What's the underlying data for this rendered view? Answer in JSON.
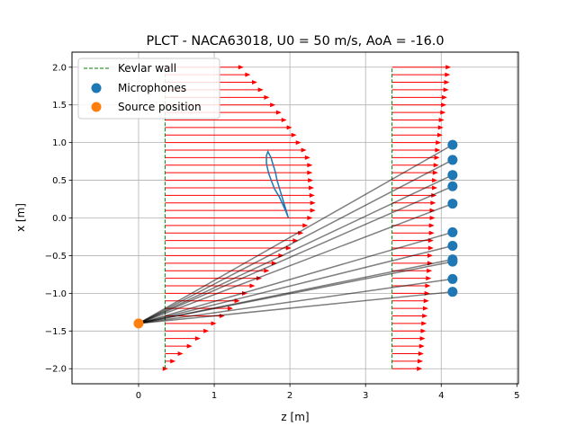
{
  "chart_data": {
    "type": "scatter",
    "title": "PLCT - NACA63018, U0 = 50 m/s, AoA = -16.0",
    "xlabel": "z [m]",
    "ylabel": "x [m]",
    "xlim": [
      -0.88,
      5.02
    ],
    "ylim": [
      -2.2,
      2.2
    ],
    "xticks": [
      "0",
      "1",
      "2",
      "3",
      "4",
      "5"
    ],
    "yticks": [
      "−2.0",
      "−1.5",
      "−1.0",
      "−0.5",
      "0.0",
      "0.5",
      "1.0",
      "1.5",
      "2.0"
    ],
    "grid": true,
    "legend_position": "top-left",
    "legend": [
      {
        "label": "Kevlar wall",
        "marker": "dashed-line",
        "color": "#008000"
      },
      {
        "label": "Microphones",
        "marker": "circle",
        "color": "#1f77b4"
      },
      {
        "label": "Source position",
        "marker": "circle",
        "color": "#ff7f0e"
      }
    ],
    "kevlar_wall": {
      "z": [
        0.35,
        3.35
      ],
      "x_range": [
        -2.0,
        2.0
      ],
      "color": "#008000"
    },
    "microphones": {
      "color": "#1f77b4",
      "points": [
        {
          "z": 4.15,
          "x": 0.97
        },
        {
          "z": 4.15,
          "x": 0.77
        },
        {
          "z": 4.15,
          "x": 0.57
        },
        {
          "z": 4.15,
          "x": 0.42
        },
        {
          "z": 4.15,
          "x": 0.19
        },
        {
          "z": 4.15,
          "x": -0.19
        },
        {
          "z": 4.15,
          "x": -0.37
        },
        {
          "z": 4.15,
          "x": -0.55
        },
        {
          "z": 4.15,
          "x": -0.58
        },
        {
          "z": 4.15,
          "x": -0.81
        },
        {
          "z": 4.15,
          "x": -0.98
        }
      ]
    },
    "source_position": {
      "z": 0.0,
      "x": -1.4,
      "color": "#ff7f0e"
    },
    "acoustic_rays": {
      "color": "#555555",
      "from": "source_position",
      "to": "microphones"
    },
    "velocity_profiles": [
      {
        "z0": 0.35,
        "x_values": [
          -2.0,
          -1.9,
          -1.8,
          -1.7,
          -1.6,
          -1.5,
          -1.4,
          -1.3,
          -1.2,
          -1.1,
          -1.0,
          -0.9,
          -0.8,
          -0.7,
          -0.6,
          -0.5,
          -0.4,
          -0.3,
          -0.2,
          -0.1,
          0.0,
          0.1,
          0.2,
          0.3,
          0.4,
          0.5,
          0.6,
          0.7,
          0.8,
          0.9,
          1.0,
          1.1,
          1.2,
          1.3,
          1.4,
          1.5,
          1.6,
          1.7,
          1.8,
          1.9,
          2.0
        ],
        "u_values": [
          0.04,
          0.14,
          0.24,
          0.36,
          0.47,
          0.58,
          0.68,
          0.79,
          0.9,
          0.99,
          1.09,
          1.19,
          1.28,
          1.38,
          1.48,
          1.57,
          1.67,
          1.76,
          1.83,
          1.89,
          1.95,
          1.99,
          1.99,
          1.98,
          1.97,
          1.96,
          1.95,
          1.95,
          1.92,
          1.87,
          1.8,
          1.74,
          1.68,
          1.61,
          1.54,
          1.46,
          1.38,
          1.3,
          1.22,
          1.13,
          1.04
        ]
      },
      {
        "z0": 3.35,
        "x_values": [
          -2.0,
          -1.9,
          -1.8,
          -1.7,
          -1.6,
          -1.5,
          -1.4,
          -1.3,
          -1.2,
          -1.1,
          -1.0,
          -0.9,
          -0.8,
          -0.7,
          -0.6,
          -0.5,
          -0.4,
          -0.3,
          -0.2,
          -0.1,
          0.0,
          0.1,
          0.2,
          0.3,
          0.4,
          0.5,
          0.6,
          0.7,
          0.8,
          0.9,
          1.0,
          1.1,
          1.2,
          1.3,
          1.4,
          1.5,
          1.6,
          1.7,
          1.8,
          1.9,
          2.0
        ],
        "u_values": [
          0.4,
          0.41,
          0.42,
          0.43,
          0.44,
          0.45,
          0.46,
          0.47,
          0.48,
          0.49,
          0.5,
          0.51,
          0.52,
          0.53,
          0.54,
          0.54,
          0.55,
          0.55,
          0.56,
          0.56,
          0.57,
          0.57,
          0.58,
          0.59,
          0.6,
          0.6,
          0.61,
          0.62,
          0.63,
          0.64,
          0.65,
          0.67,
          0.68,
          0.69,
          0.71,
          0.72,
          0.73,
          0.75,
          0.76,
          0.77,
          0.78
        ]
      }
    ],
    "airfoil": {
      "color": "#1f77b4",
      "outline": [
        {
          "z": 1.98,
          "x": 0.0
        },
        {
          "z": 1.95,
          "x": 0.1
        },
        {
          "z": 1.92,
          "x": 0.2
        },
        {
          "z": 1.89,
          "x": 0.3
        },
        {
          "z": 1.86,
          "x": 0.4
        },
        {
          "z": 1.83,
          "x": 0.5
        },
        {
          "z": 1.81,
          "x": 0.6
        },
        {
          "z": 1.78,
          "x": 0.7
        },
        {
          "z": 1.75,
          "x": 0.8
        },
        {
          "z": 1.71,
          "x": 0.88
        },
        {
          "z": 1.69,
          "x": 0.83
        },
        {
          "z": 1.69,
          "x": 0.72
        },
        {
          "z": 1.72,
          "x": 0.59
        },
        {
          "z": 1.76,
          "x": 0.48
        },
        {
          "z": 1.8,
          "x": 0.38
        },
        {
          "z": 1.86,
          "x": 0.28
        },
        {
          "z": 1.91,
          "x": 0.17
        },
        {
          "z": 1.95,
          "x": 0.08
        },
        {
          "z": 1.98,
          "x": 0.0
        }
      ]
    }
  }
}
